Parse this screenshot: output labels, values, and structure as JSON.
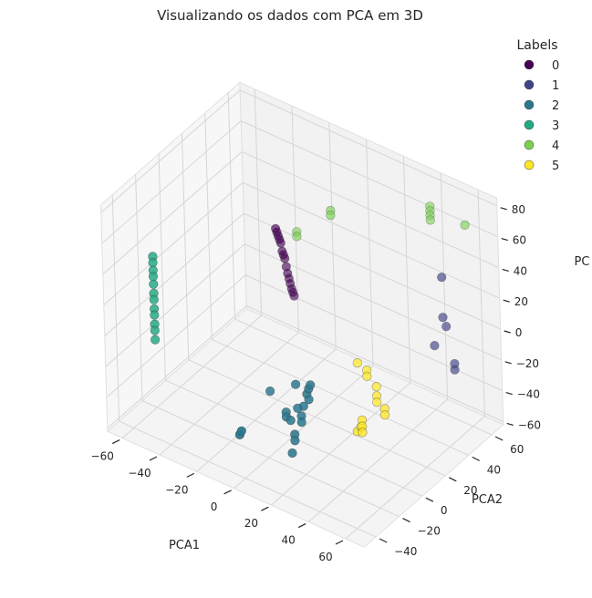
{
  "chart_data": {
    "type": "scatter",
    "title": "Visualizando os dados com PCA em 3D",
    "xlabel": "PCA1",
    "ylabel": "PCA2",
    "zlabel": "PC",
    "xticks": [
      "−60",
      "−40",
      "−20",
      "0",
      "20",
      "40",
      "60"
    ],
    "yticks": [
      "−40",
      "−20",
      "0",
      "20",
      "40",
      "60"
    ],
    "zticks": [
      "−60",
      "−40",
      "−20",
      "0",
      "20",
      "40",
      "60",
      "80"
    ],
    "xlim": [
      -68,
      70
    ],
    "ylim": [
      -50,
      70
    ],
    "zlim": [
      -62,
      85
    ],
    "grid": true,
    "legend": {
      "title": "Labels",
      "placement": "top-right",
      "labels": [
        "0",
        "1",
        "2",
        "3",
        "4",
        "5"
      ]
    },
    "colors": [
      "#440154",
      "#414487",
      "#2a788e",
      "#22a884",
      "#7ad151",
      "#fde725"
    ],
    "series": [
      {
        "label": "0",
        "points": [
          [
            -25,
            30,
            40
          ],
          [
            -25,
            31,
            37
          ],
          [
            -25,
            32,
            34
          ],
          [
            -25,
            33,
            31
          ],
          [
            -25,
            34,
            28
          ],
          [
            -25,
            35,
            22
          ],
          [
            -25,
            36,
            19
          ],
          [
            -25,
            37,
            16
          ],
          [
            -25,
            38,
            10
          ],
          [
            -25,
            39,
            5
          ],
          [
            -25,
            40,
            1
          ],
          [
            -25,
            41,
            -3
          ],
          [
            -25,
            42,
            -7
          ],
          [
            -25,
            43,
            -10
          ],
          [
            -25,
            44,
            -13
          ]
        ]
      },
      {
        "label": "1",
        "points": [
          [
            55,
            45,
            42
          ],
          [
            55,
            45,
            16
          ],
          [
            56,
            46,
            10
          ],
          [
            60,
            46,
            -12
          ],
          [
            60,
            46,
            -16
          ],
          [
            50,
            45,
            -5
          ]
        ]
      },
      {
        "label": "2",
        "points": [
          [
            12,
            -8,
            -30
          ],
          [
            15,
            -8,
            -24
          ],
          [
            14,
            -8,
            -21
          ],
          [
            15,
            -8,
            -17
          ],
          [
            16,
            -8,
            -14
          ],
          [
            8,
            -8,
            -18
          ],
          [
            10,
            -10,
            -31
          ],
          [
            12,
            -10,
            -35
          ],
          [
            12,
            -10,
            -39
          ],
          [
            5,
            -12,
            -35
          ],
          [
            5,
            -12,
            -38
          ],
          [
            8,
            -13,
            -38
          ],
          [
            10,
            -13,
            -46
          ],
          [
            10,
            -13,
            -50
          ],
          [
            9,
            -14,
            -58
          ],
          [
            -6,
            -8,
            -30
          ],
          [
            5,
            -50,
            -22
          ],
          [
            4,
            -50,
            -25
          ]
        ]
      },
      {
        "label": "3",
        "points": [
          [
            -60,
            -20,
            36
          ],
          [
            -60,
            -20,
            32
          ],
          [
            -60,
            -20,
            27
          ],
          [
            -60,
            -20,
            23
          ],
          [
            -60,
            -20,
            18
          ],
          [
            -60,
            -20,
            12
          ],
          [
            -60,
            -20,
            8
          ],
          [
            -60,
            -20,
            2
          ],
          [
            -60,
            -20,
            -2
          ],
          [
            -60,
            -20,
            -8
          ],
          [
            -60,
            -20,
            -12
          ],
          [
            -60,
            -20,
            -18
          ]
        ]
      },
      {
        "label": "4",
        "points": [
          [
            40,
            60,
            70
          ],
          [
            40,
            60,
            67
          ],
          [
            40,
            60,
            64
          ],
          [
            40,
            60,
            61
          ],
          [
            60,
            58,
            70
          ],
          [
            0,
            38,
            60
          ],
          [
            0,
            38,
            57
          ],
          [
            -20,
            40,
            34
          ],
          [
            -20,
            40,
            31
          ]
        ]
      },
      {
        "label": "5",
        "points": [
          [
            20,
            26,
            -20
          ],
          [
            25,
            26,
            -22
          ],
          [
            25,
            26,
            -26
          ],
          [
            30,
            26,
            -30
          ],
          [
            30,
            26,
            -36
          ],
          [
            30,
            26,
            -40
          ],
          [
            38,
            20,
            -36
          ],
          [
            38,
            20,
            -40
          ],
          [
            32,
            10,
            -40
          ],
          [
            32,
            10,
            -44
          ],
          [
            32,
            10,
            -48
          ],
          [
            28,
            15,
            -50
          ],
          [
            26,
            15,
            -54
          ]
        ]
      }
    ]
  }
}
